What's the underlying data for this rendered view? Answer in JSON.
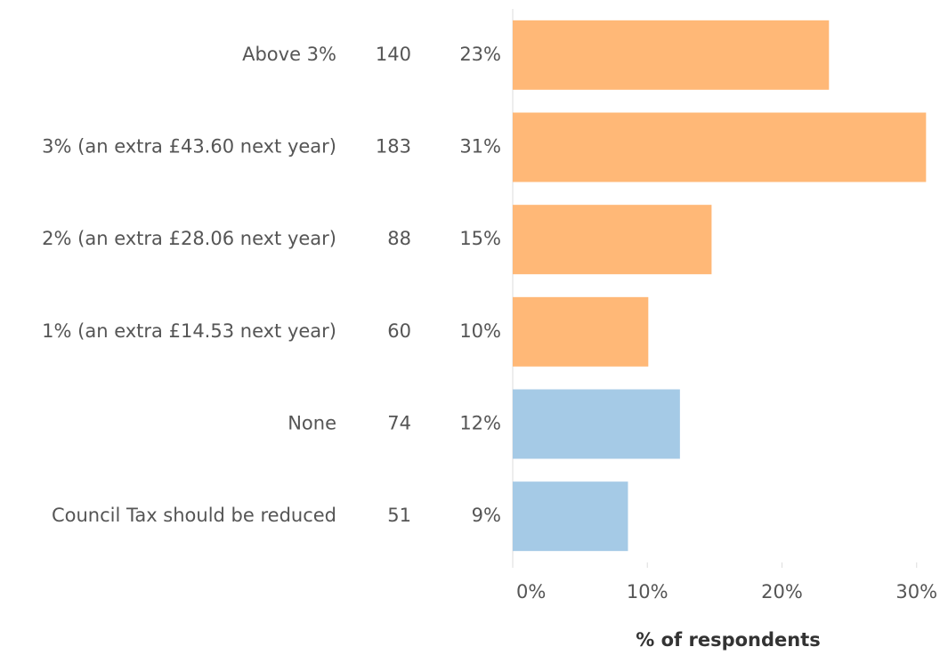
{
  "chart_data": {
    "type": "bar",
    "orientation": "horizontal",
    "categories": [
      "Above 3%",
      "3% (an extra £43.60 next year)",
      "2% (an extra £28.06 next year)",
      "1% (an extra £14.53 next year)",
      "None",
      "Council Tax should be reduced"
    ],
    "counts": [
      140,
      183,
      88,
      60,
      74,
      51
    ],
    "values": [
      23.49,
      30.7,
      14.77,
      10.07,
      12.42,
      8.56
    ],
    "value_labels": [
      "23%",
      "31%",
      "15%",
      "10%",
      "12%",
      "9%"
    ],
    "colors": [
      "#ffb877",
      "#ffb877",
      "#ffb877",
      "#ffb877",
      "#a5cae6",
      "#a5cae6"
    ],
    "xlim": [
      0,
      32
    ],
    "xticks": [
      {
        "value": 0,
        "label": "0%"
      },
      {
        "value": 10,
        "label": "10%"
      },
      {
        "value": 20,
        "label": "20%"
      },
      {
        "value": 30,
        "label": "30%"
      }
    ],
    "x_label": "% of respondents"
  }
}
